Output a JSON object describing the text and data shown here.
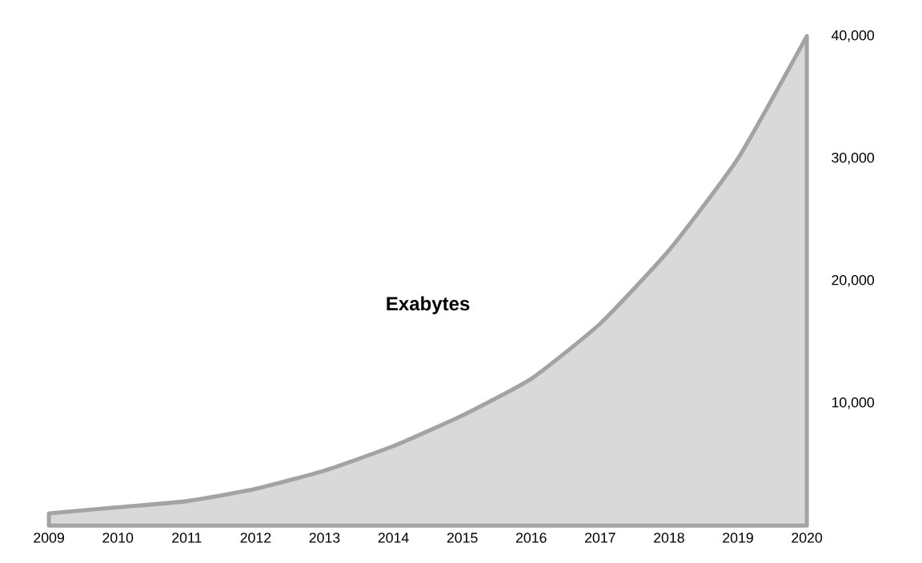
{
  "chart_data": {
    "type": "area",
    "categories": [
      "2009",
      "2010",
      "2011",
      "2012",
      "2013",
      "2014",
      "2015",
      "2016",
      "2017",
      "2018",
      "2019",
      "2020"
    ],
    "series": [
      {
        "color": "#d9d9d9",
        "values": [
          1000,
          1500,
          2000,
          3000,
          4500,
          6500,
          9000,
          12000,
          16500,
          22500,
          30000,
          40000
        ]
      }
    ],
    "ylim": [
      0,
      40000
    ],
    "yticks": [
      {
        "value": 10000,
        "label": "10,000"
      },
      {
        "value": 20000,
        "label": "20,000"
      },
      {
        "value": 30000,
        "label": "30,000"
      },
      {
        "value": 40000,
        "label": "40,000"
      }
    ],
    "annotations": [
      "**Exabytes**"
    ],
    "grid": false
  }
}
